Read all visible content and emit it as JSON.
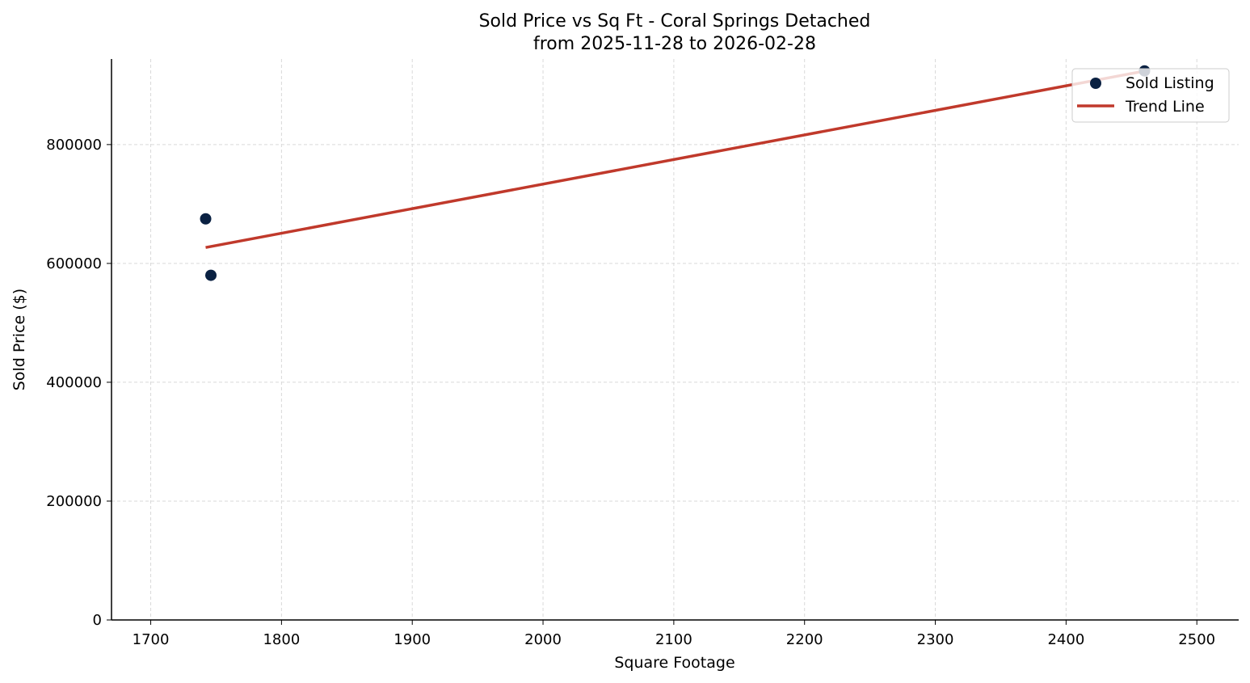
{
  "chart_data": {
    "type": "scatter",
    "title": "Sold Price vs Sq Ft - Coral Springs Detached",
    "subtitle": "from 2025-11-28 to 2026-02-28",
    "xlabel": "Square Footage",
    "ylabel": "Sold Price ($)",
    "xlim": [
      1670,
      2532
    ],
    "ylim": [
      0,
      944000
    ],
    "xticks": [
      1700,
      1800,
      1900,
      2000,
      2100,
      2200,
      2300,
      2400,
      2500
    ],
    "yticks": [
      0,
      200000,
      400000,
      600000,
      800000
    ],
    "grid": true,
    "legend_position": "top-right",
    "series": [
      {
        "name": "Sold Listing",
        "kind": "scatter",
        "color": "#0a2142",
        "x": [
          1742,
          1746,
          2460
        ],
        "y": [
          675000,
          580000,
          924000
        ]
      },
      {
        "name": "Trend Line",
        "kind": "line",
        "color": "#c0392b",
        "x": [
          1742,
          2460
        ],
        "y": [
          626800,
          923700
        ]
      }
    ]
  }
}
